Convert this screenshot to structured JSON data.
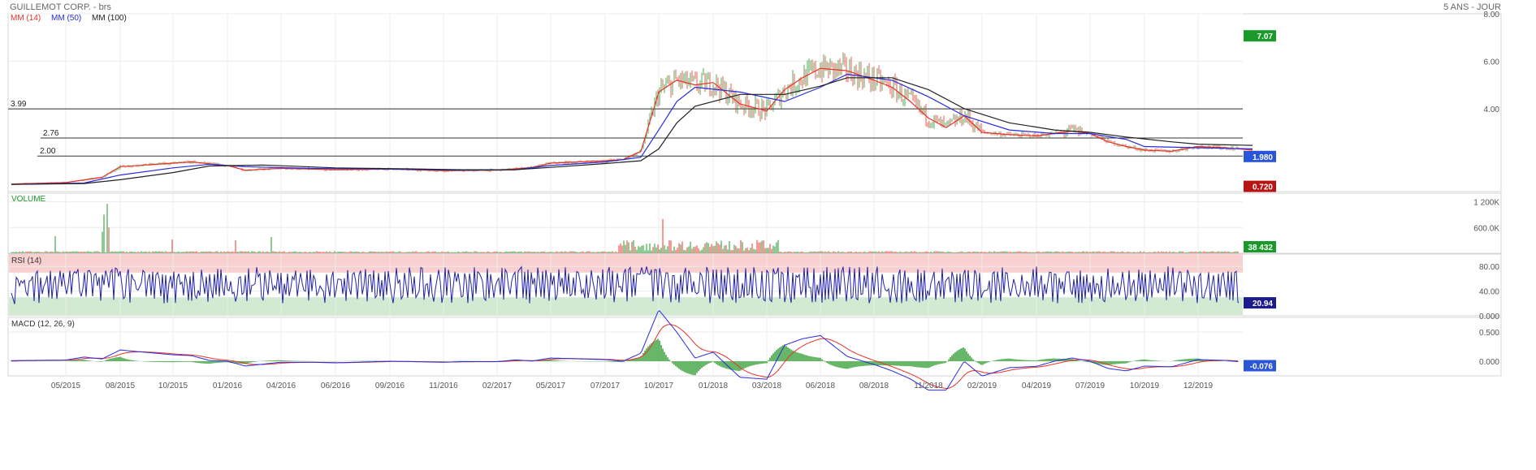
{
  "header": {
    "title": "GUILLEMOT CORP. - brs",
    "period": "5 ANS - JOUR"
  },
  "chart_data": [
    {
      "panel": "price",
      "type": "candlestick",
      "ylim": [
        0.5,
        8.0
      ],
      "y_ticks": [
        "8.00",
        "6.00",
        "4.00"
      ],
      "x_ticks": [
        "05/2015",
        "08/2015",
        "10/2015",
        "01/2016",
        "04/2016",
        "06/2016",
        "09/2016",
        "11/2016",
        "02/2017",
        "05/2017",
        "07/2017",
        "10/2017",
        "01/2018",
        "03/2018",
        "06/2018",
        "08/2018",
        "11/2018",
        "02/2019",
        "04/2019",
        "07/2019",
        "10/2019",
        "12/2019"
      ],
      "legend": [
        {
          "label": "MM (14)",
          "color": "#e8332b"
        },
        {
          "label": "MM (50)",
          "color": "#2b2bdd"
        },
        {
          "label": "MM (100)",
          "color": "#222222"
        }
      ],
      "horizontal_lines": [
        {
          "label": "3.99",
          "value": 3.99
        },
        {
          "label": "2.76",
          "value": 2.76
        },
        {
          "label": "2.00",
          "value": 2.0
        }
      ],
      "badges": [
        {
          "text": "7.07",
          "value": 7.07,
          "color": "#1a9a2a"
        },
        {
          "text": "1.980",
          "value": 1.98,
          "color": "#2b55d8"
        },
        {
          "text": "0.720",
          "value": 0.72,
          "color": "#b81414"
        }
      ],
      "series": [
        {
          "name": "MM (14)",
          "x": [
            "03/2015",
            "05/2015",
            "07/2015",
            "08/2015",
            "10/2015",
            "11/2015",
            "01/2016",
            "02/2016",
            "04/2016",
            "06/2016",
            "09/2016",
            "11/2016",
            "02/2017",
            "04/2017",
            "05/2017",
            "07/2017",
            "08/2017",
            "09/2017",
            "10/2017",
            "11/2017",
            "12/2017",
            "01/2018",
            "02/2018",
            "03/2018",
            "04/2018",
            "05/2018",
            "06/2018",
            "07/2018",
            "08/2018",
            "09/2018",
            "10/2018",
            "11/2018",
            "12/2018",
            "01/2019",
            "02/2019",
            "03/2019",
            "04/2019",
            "06/2019",
            "07/2019",
            "08/2019",
            "09/2019",
            "10/2019",
            "11/2019",
            "12/2019",
            "01/2020",
            "02/2020"
          ],
          "y": [
            0.82,
            0.88,
            1.1,
            1.55,
            1.7,
            1.75,
            1.6,
            1.4,
            1.48,
            1.42,
            1.45,
            1.38,
            1.4,
            1.52,
            1.7,
            1.8,
            1.85,
            2.2,
            4.7,
            5.2,
            5.0,
            5.1,
            4.2,
            3.9,
            4.8,
            5.3,
            5.7,
            5.6,
            5.2,
            4.9,
            4.3,
            3.6,
            3.2,
            3.7,
            3.0,
            2.9,
            2.85,
            3.05,
            2.95,
            2.6,
            2.4,
            2.25,
            2.2,
            2.4,
            2.35,
            2.25
          ]
        },
        {
          "name": "MM (50)",
          "x": [
            "03/2015",
            "06/2015",
            "08/2015",
            "10/2015",
            "12/2015",
            "02/2016",
            "05/2016",
            "09/2016",
            "12/2016",
            "03/2017",
            "05/2017",
            "07/2017",
            "09/2017",
            "10/2017",
            "11/2017",
            "12/2017",
            "02/2018",
            "04/2018",
            "06/2018",
            "07/2018",
            "09/2018",
            "11/2018",
            "01/2019",
            "03/2019",
            "05/2019",
            "07/2019",
            "09/2019",
            "10/2019",
            "12/2019",
            "02/2020"
          ],
          "y": [
            0.8,
            0.86,
            1.2,
            1.5,
            1.65,
            1.55,
            1.48,
            1.45,
            1.4,
            1.42,
            1.6,
            1.75,
            1.95,
            3.1,
            4.3,
            4.9,
            4.7,
            4.3,
            4.9,
            5.45,
            5.2,
            4.5,
            3.7,
            3.1,
            2.95,
            2.95,
            2.7,
            2.4,
            2.35,
            2.3
          ]
        },
        {
          "name": "MM (100)",
          "x": [
            "03/2015",
            "06/2015",
            "08/2015",
            "10/2015",
            "12/2015",
            "03/2016",
            "06/2016",
            "09/2016",
            "12/2016",
            "03/2017",
            "05/2017",
            "07/2017",
            "09/2017",
            "10/2017",
            "11/2017",
            "12/2017",
            "02/2018",
            "04/2018",
            "06/2018",
            "07/2018",
            "09/2018",
            "11/2018",
            "01/2019",
            "03/2019",
            "05/2019",
            "07/2019",
            "09/2019",
            "11/2019",
            "12/2019",
            "02/2020"
          ],
          "y": [
            0.8,
            0.84,
            1.0,
            1.3,
            1.58,
            1.62,
            1.5,
            1.47,
            1.42,
            1.42,
            1.52,
            1.68,
            1.8,
            2.3,
            3.4,
            4.1,
            4.6,
            4.6,
            4.95,
            5.3,
            5.3,
            4.8,
            4.0,
            3.4,
            3.1,
            3.0,
            2.8,
            2.6,
            2.5,
            2.45
          ]
        }
      ]
    },
    {
      "panel": "volume",
      "type": "bar",
      "title": "VOLUME",
      "ylim": [
        0,
        1400000
      ],
      "y_ticks": [
        "1 200K",
        "600.0K"
      ],
      "last_value_badge": {
        "text": "38 432",
        "color": "#1a9a2a"
      },
      "bar_colors": {
        "up": "#1a9a2a",
        "down": "#e8332b"
      }
    },
    {
      "panel": "rsi",
      "type": "line",
      "title": "RSI (14)",
      "ylim": [
        0,
        100
      ],
      "y_ticks": [
        "80.00",
        "40.00",
        "0.000"
      ],
      "zones": [
        {
          "from": 70,
          "to": 100,
          "color": "#f8d0d0"
        },
        {
          "from": 0,
          "to": 30,
          "color": "#d2ead2"
        }
      ],
      "last_value_badge": {
        "text": "20.94",
        "color": "#1c1c8c"
      },
      "series": [
        {
          "name": "RSI (14)",
          "color": "#2222aa"
        }
      ]
    },
    {
      "panel": "macd",
      "type": "line",
      "title": "MACD (12, 26, 9)",
      "ylim": [
        -0.25,
        0.75
      ],
      "y_ticks": [
        "0.500",
        "0.000"
      ],
      "last_value_badge": {
        "text": "-0.076",
        "color": "#2b55d8"
      },
      "series": [
        {
          "name": "MACD",
          "color": "#2b2bdd"
        },
        {
          "name": "Signal",
          "color": "#e8332b"
        },
        {
          "name": "Histogram",
          "color": "#4daa4d"
        }
      ]
    }
  ]
}
